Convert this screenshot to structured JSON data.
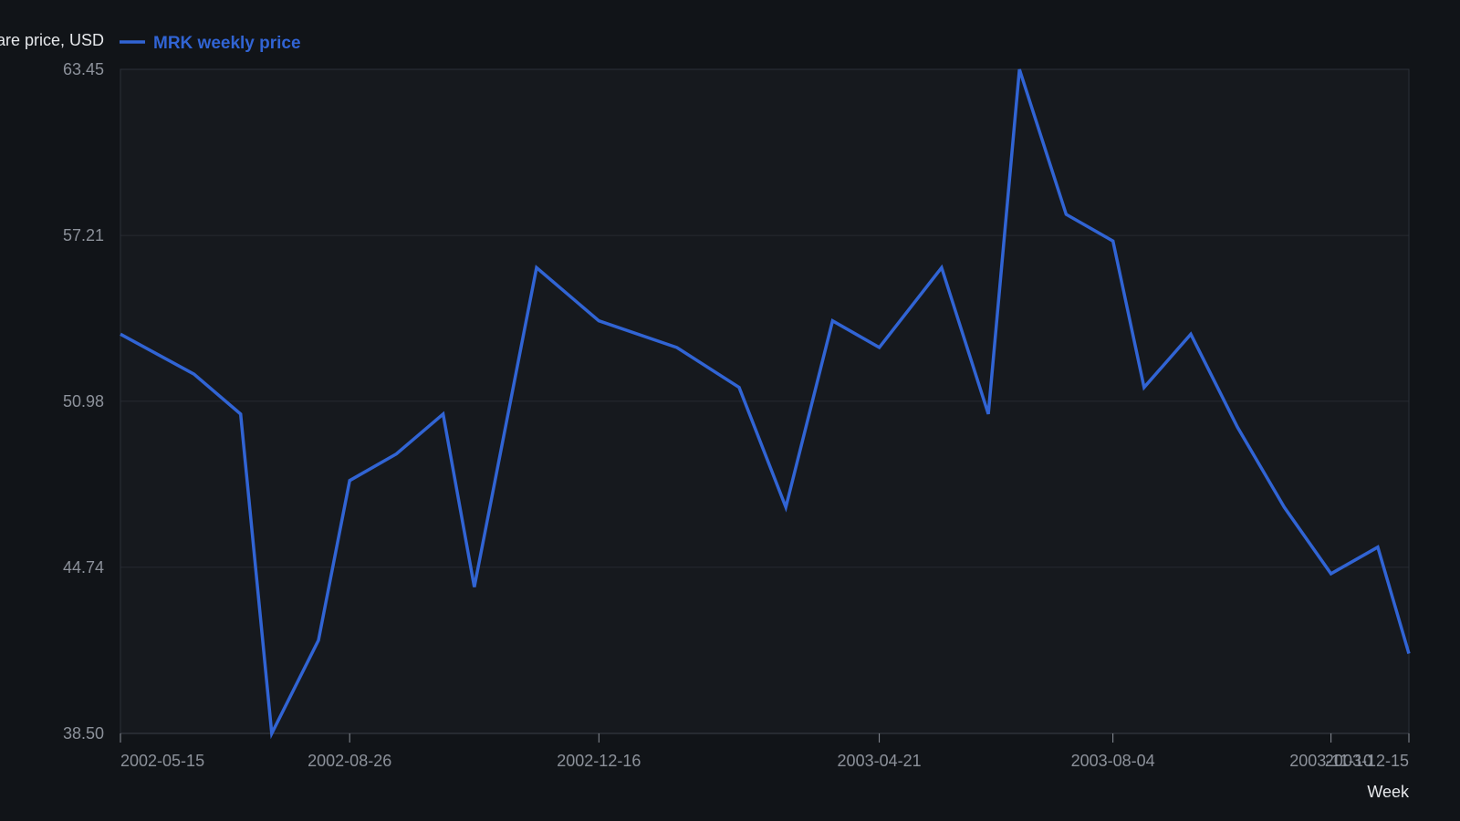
{
  "chart_data": {
    "type": "line",
    "ylabel": "Share price, USD",
    "xlabel": "Week",
    "x_tick_labels": [
      "2002-05-15",
      "2002-08-26",
      "2002-12-16",
      "2003-04-21",
      "2003-08-04",
      "2003-11-10",
      "2003-12-15"
    ],
    "y_tick_labels": [
      "63.45",
      "57.21",
      "50.98",
      "44.74",
      "38.50"
    ],
    "y_ticks": [
      63.45,
      57.21,
      50.98,
      44.74,
      38.5
    ],
    "ylim": [
      38.5,
      63.45
    ],
    "xlim": [
      "2002-05-15",
      "2003-12-15"
    ],
    "grid": true,
    "legend_position": "top-left",
    "series": [
      {
        "name": "MRK weekly price",
        "color": "#3164d4",
        "points": [
          {
            "x": "2002-05-15",
            "y": 53.5
          },
          {
            "x": "2002-06-17",
            "y": 52.0
          },
          {
            "x": "2002-07-08",
            "y": 50.5
          },
          {
            "x": "2002-07-22",
            "y": 38.5
          },
          {
            "x": "2002-08-12",
            "y": 42.0
          },
          {
            "x": "2002-08-26",
            "y": 48.0
          },
          {
            "x": "2002-09-16",
            "y": 49.0
          },
          {
            "x": "2002-10-07",
            "y": 50.5
          },
          {
            "x": "2002-10-21",
            "y": 44.0
          },
          {
            "x": "2002-11-18",
            "y": 56.0
          },
          {
            "x": "2002-12-16",
            "y": 54.0
          },
          {
            "x": "2003-01-20",
            "y": 53.0
          },
          {
            "x": "2003-02-17",
            "y": 51.5
          },
          {
            "x": "2003-03-10",
            "y": 47.0
          },
          {
            "x": "2003-03-31",
            "y": 54.0
          },
          {
            "x": "2003-04-21",
            "y": 53.0
          },
          {
            "x": "2003-05-19",
            "y": 56.0
          },
          {
            "x": "2003-06-09",
            "y": 50.5
          },
          {
            "x": "2003-06-23",
            "y": 63.45
          },
          {
            "x": "2003-07-14",
            "y": 58.0
          },
          {
            "x": "2003-08-04",
            "y": 57.0
          },
          {
            "x": "2003-08-18",
            "y": 51.5
          },
          {
            "x": "2003-09-08",
            "y": 53.5
          },
          {
            "x": "2003-09-29",
            "y": 50.0
          },
          {
            "x": "2003-10-20",
            "y": 47.0
          },
          {
            "x": "2003-11-10",
            "y": 44.5
          },
          {
            "x": "2003-12-01",
            "y": 45.5
          },
          {
            "x": "2003-12-15",
            "y": 41.5
          }
        ]
      }
    ]
  }
}
